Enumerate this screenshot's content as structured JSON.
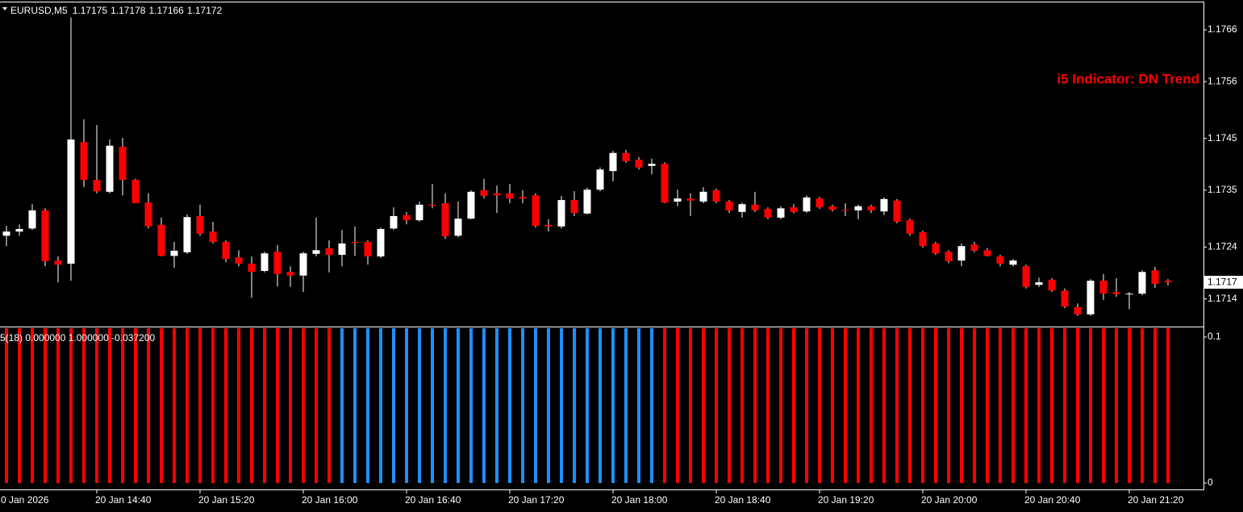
{
  "chart_data": {
    "type": "candlestick",
    "symbol": "EURUSD,M5",
    "trend_text": "i5 Indicator: DN Trend",
    "x_axis_start_label": "0 Jan 2026",
    "categories": [
      null,
      null,
      null,
      null,
      null,
      null,
      null,
      "20 Jan 14:40",
      null,
      null,
      null,
      null,
      null,
      null,
      null,
      "20 Jan 15:20",
      null,
      null,
      null,
      null,
      null,
      null,
      null,
      "20 Jan 16:00",
      null,
      null,
      null,
      null,
      null,
      null,
      null,
      "20 Jan 16:40",
      null,
      null,
      null,
      null,
      null,
      null,
      null,
      "20 Jan 17:20",
      null,
      null,
      null,
      null,
      null,
      null,
      null,
      "20 Jan 18:00",
      null,
      null,
      null,
      null,
      null,
      null,
      null,
      "20 Jan 18:40",
      null,
      null,
      null,
      null,
      null,
      null,
      null,
      "20 Jan 19:20",
      null,
      null,
      null,
      null,
      null,
      null,
      null,
      "20 Jan 20:00",
      null,
      null,
      null,
      null,
      null,
      null,
      null,
      "20 Jan 20:40",
      null,
      null,
      null,
      null,
      null,
      null,
      null,
      "20 Jan 21:20",
      null,
      null,
      null
    ],
    "open": [
      1.17262,
      1.1727,
      1.17276,
      1.17311,
      1.17214,
      1.17208,
      1.17443,
      1.1737,
      1.17347,
      1.17434,
      1.1737,
      1.17326,
      1.17283,
      1.17223,
      1.1723,
      1.173,
      1.1727,
      1.1725,
      1.1722,
      1.17208,
      1.17194,
      1.17231,
      1.17192,
      1.17185,
      1.17227,
      1.17238,
      1.17225,
      1.1725,
      1.1725,
      1.17222,
      1.17276,
      1.17302,
      1.17292,
      1.17322,
      1.17325,
      1.17262,
      1.17295,
      1.1735,
      1.17344,
      1.17344,
      1.17337,
      1.1734,
      1.17283,
      1.1728,
      1.17331,
      1.17305,
      1.17351,
      1.17387,
      1.17422,
      1.17409,
      1.17397,
      1.17401,
      1.17328,
      1.17334,
      1.17328,
      1.1735,
      1.17328,
      1.17308,
      1.17322,
      1.17314,
      1.17297,
      1.17317,
      1.17309,
      1.17334,
      1.17319,
      1.17312,
      1.17311,
      1.17319,
      1.17309,
      1.1733,
      1.17292,
      1.17269,
      1.17247,
      1.17231,
      1.17214,
      1.17245,
      1.17234,
      1.17222,
      1.17206,
      1.17203,
      1.17167,
      1.17177,
      1.17156,
      1.17124,
      1.1711,
      1.17175,
      1.17153,
      1.17149,
      1.1715,
      1.17195,
      1.17175
    ],
    "high": [
      1.17281,
      1.17284,
      1.17323,
      1.17315,
      1.17222,
      1.17684,
      1.17487,
      1.17476,
      1.17448,
      1.17451,
      1.17372,
      1.17344,
      1.17297,
      1.1725,
      1.17303,
      1.17322,
      1.17289,
      1.17253,
      1.17234,
      1.17222,
      1.17231,
      1.17244,
      1.17203,
      1.17231,
      1.17297,
      1.17253,
      1.17273,
      1.1728,
      1.17253,
      1.17278,
      1.17317,
      1.17308,
      1.17328,
      1.17362,
      1.17344,
      1.17328,
      1.1735,
      1.17372,
      1.17359,
      1.17362,
      1.1735,
      1.17344,
      1.17294,
      1.17339,
      1.17348,
      1.17355,
      1.17394,
      1.17426,
      1.17428,
      1.17414,
      1.17411,
      1.17404,
      1.17351,
      1.17344,
      1.17356,
      1.17353,
      1.17331,
      1.17326,
      1.17347,
      1.17317,
      1.17319,
      1.17323,
      1.1734,
      1.17337,
      1.17322,
      1.17325,
      1.17322,
      1.17322,
      1.17336,
      1.17333,
      1.17295,
      1.17272,
      1.1725,
      1.17234,
      1.17247,
      1.1725,
      1.17238,
      1.17225,
      1.17217,
      1.17206,
      1.17181,
      1.1718,
      1.1716,
      1.17131,
      1.17178,
      1.17188,
      1.1718,
      1.17153,
      1.17195,
      1.17202,
      1.17178
    ],
    "low": [
      1.17242,
      1.17262,
      1.17273,
      1.17203,
      1.17172,
      1.17175,
      1.17356,
      1.17344,
      1.17344,
      1.1734,
      1.17325,
      1.17276,
      1.17222,
      1.172,
      1.17227,
      1.17262,
      1.17247,
      1.17211,
      1.17203,
      1.17142,
      1.17191,
      1.17164,
      1.17163,
      1.17153,
      1.17222,
      1.17191,
      1.17203,
      1.17223,
      1.17206,
      1.17219,
      1.17273,
      1.17284,
      1.17289,
      1.17315,
      1.17256,
      1.17259,
      1.17294,
      1.17334,
      1.17306,
      1.17325,
      1.17325,
      1.17278,
      1.1727,
      1.17276,
      1.173,
      1.17303,
      1.17348,
      1.17367,
      1.17403,
      1.1739,
      1.17381,
      1.17325,
      1.17319,
      1.173,
      1.17325,
      1.17325,
      1.17306,
      1.17297,
      1.17308,
      1.17294,
      1.17294,
      1.17305,
      1.17306,
      1.17314,
      1.17309,
      1.173,
      1.17294,
      1.17306,
      1.17302,
      1.17286,
      1.17262,
      1.17239,
      1.17225,
      1.17209,
      1.17203,
      1.1723,
      1.17222,
      1.17203,
      1.17203,
      1.1716,
      1.17163,
      1.17153,
      1.17122,
      1.17107,
      1.17107,
      1.17138,
      1.17144,
      1.1712,
      1.17147,
      1.17161,
      1.17166
    ],
    "close": [
      1.1727,
      1.17275,
      1.17311,
      1.17213,
      1.17206,
      1.17448,
      1.1737,
      1.17348,
      1.17436,
      1.1737,
      1.17325,
      1.1728,
      1.17223,
      1.17233,
      1.17298,
      1.17266,
      1.1725,
      1.17217,
      1.17208,
      1.17192,
      1.17228,
      1.17188,
      1.17185,
      1.17228,
      1.17234,
      1.17225,
      1.17247,
      1.17248,
      1.17222,
      1.17275,
      1.173,
      1.17292,
      1.17322,
      1.1732,
      1.17261,
      1.17295,
      1.17347,
      1.17339,
      1.1734,
      1.17334,
      1.17334,
      1.17281,
      1.1728,
      1.17331,
      1.17306,
      1.17351,
      1.1739,
      1.17422,
      1.17406,
      1.17394,
      1.17401,
      1.17326,
      1.17334,
      1.1733,
      1.17347,
      1.17328,
      1.17311,
      1.17323,
      1.17311,
      1.17297,
      1.17315,
      1.17308,
      1.17336,
      1.17317,
      1.17312,
      1.17311,
      1.17319,
      1.17311,
      1.17333,
      1.17289,
      1.17266,
      1.17242,
      1.17228,
      1.17213,
      1.17242,
      1.17233,
      1.17223,
      1.17208,
      1.17214,
      1.17163,
      1.17172,
      1.17156,
      1.17125,
      1.1711,
      1.17175,
      1.1715,
      1.17149,
      1.1715,
      1.17192,
      1.17169,
      1.17172
    ],
    "up_color": "#ffffff",
    "down_color": "#ff0000",
    "wick_color": "#ffffff",
    "ylim": [
      1.17088,
      1.17713
    ],
    "yticks": [
      1.1766,
      1.1756,
      1.1745,
      1.1735,
      1.1724,
      1.1714
    ],
    "price_label": {
      "value": 1.17172,
      "label": "1.1717"
    },
    "indicator": {
      "type": "bar",
      "label": "5(18) 0.000000 1.000000 -0.037200",
      "values": [
        1,
        1,
        1,
        1,
        1,
        1,
        1,
        1,
        1,
        1,
        1,
        1,
        1,
        1,
        1,
        1,
        1,
        1,
        1,
        1,
        1,
        1,
        1,
        1,
        1,
        1,
        1,
        1,
        1,
        1,
        1,
        1,
        1,
        1,
        1,
        1,
        1,
        1,
        1,
        1,
        1,
        1,
        1,
        1,
        1,
        1,
        1,
        1,
        1,
        1,
        1,
        1,
        1,
        1,
        1,
        1,
        1,
        1,
        1,
        1,
        1,
        1,
        1,
        1,
        1,
        1,
        1,
        1,
        1,
        1,
        1,
        1,
        1,
        1,
        1,
        1,
        1,
        1,
        1,
        1,
        1,
        1,
        1,
        1,
        1,
        1,
        1,
        1,
        1,
        1,
        1
      ],
      "colors": [
        "#ff0000",
        "#ff0000",
        "#ff0000",
        "#ff0000",
        "#ff0000",
        "#ff0000",
        "#ff0000",
        "#ff0000",
        "#ff0000",
        "#ff0000",
        "#ff0000",
        "#ff0000",
        "#ff0000",
        "#ff0000",
        "#ff0000",
        "#ff0000",
        "#ff0000",
        "#ff0000",
        "#ff0000",
        "#ff0000",
        "#ff0000",
        "#ff0000",
        "#ff0000",
        "#ff0000",
        "#ff0000",
        "#ff0000",
        "#1e90ff",
        "#1e90ff",
        "#1e90ff",
        "#1e90ff",
        "#1e90ff",
        "#1e90ff",
        "#1e90ff",
        "#1e90ff",
        "#1e90ff",
        "#1e90ff",
        "#1e90ff",
        "#1e90ff",
        "#1e90ff",
        "#1e90ff",
        "#1e90ff",
        "#1e90ff",
        "#1e90ff",
        "#1e90ff",
        "#1e90ff",
        "#1e90ff",
        "#1e90ff",
        "#1e90ff",
        "#1e90ff",
        "#1e90ff",
        "#1e90ff",
        "#ff0000",
        "#ff0000",
        "#ff0000",
        "#ff0000",
        "#ff0000",
        "#ff0000",
        "#ff0000",
        "#ff0000",
        "#ff0000",
        "#ff0000",
        "#ff0000",
        "#ff0000",
        "#ff0000",
        "#ff0000",
        "#ff0000",
        "#ff0000",
        "#ff0000",
        "#ff0000",
        "#ff0000",
        "#ff0000",
        "#ff0000",
        "#ff0000",
        "#ff0000",
        "#ff0000",
        "#ff0000",
        "#ff0000",
        "#ff0000",
        "#ff0000",
        "#ff0000",
        "#ff0000",
        "#ff0000",
        "#ff0000",
        "#ff0000",
        "#ff0000",
        "#ff0000",
        "#ff0000",
        "#ff0000",
        "#ff0000",
        "#ff0000",
        "#ff0000"
      ],
      "ylim": [
        -0.0044,
        0.1066
      ],
      "yticks": [
        0.1,
        0
      ]
    }
  }
}
